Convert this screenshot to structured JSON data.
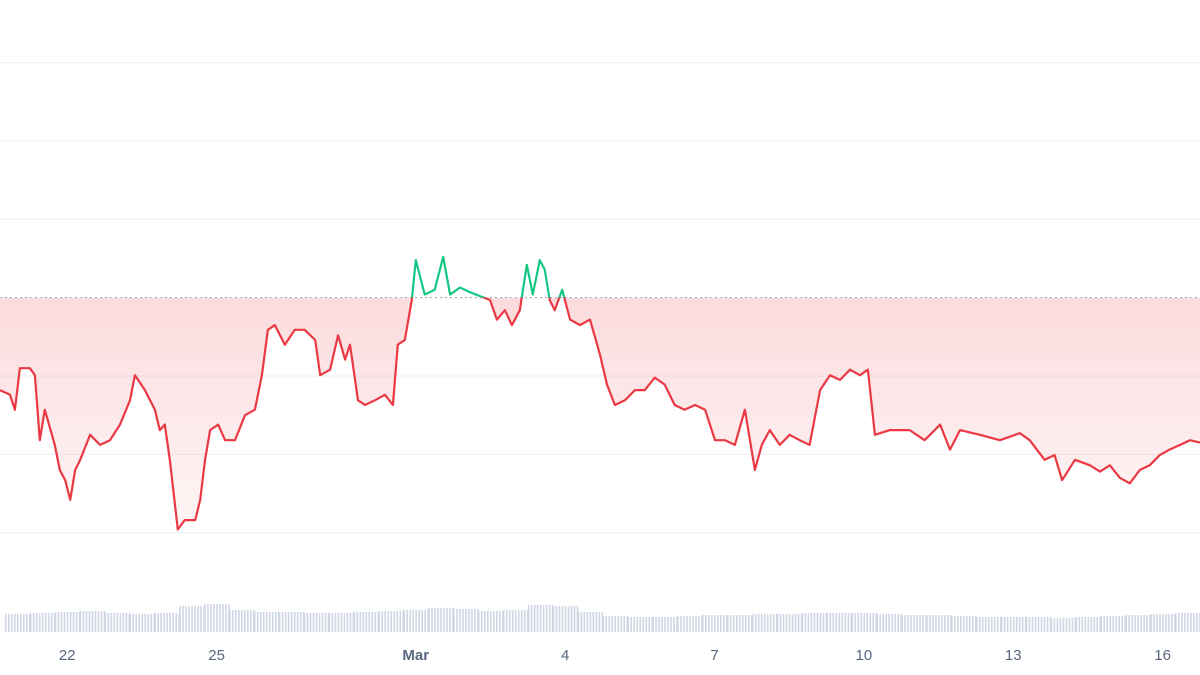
{
  "chart_data": {
    "type": "line",
    "x": [
      20.65,
      20.85,
      20.95,
      21.05,
      21.25,
      21.35,
      21.45,
      21.55,
      21.75,
      21.85,
      21.96,
      22.06,
      22.16,
      22.26,
      22.46,
      22.66,
      22.86,
      23.06,
      23.26,
      23.36,
      23.56,
      23.76,
      23.86,
      23.96,
      24.06,
      24.22,
      24.36,
      24.57,
      24.67,
      24.77,
      24.87,
      25.03,
      25.17,
      25.37,
      25.57,
      25.77,
      25.91,
      26.03,
      26.17,
      26.37,
      26.57,
      26.77,
      26.98,
      27.08,
      27.28,
      27.44,
      27.58,
      27.68,
      27.84,
      27.98,
      28.18,
      28.38,
      28.54,
      28.64,
      28.78,
      28.92,
      29.0,
      29.18,
      29.38,
      29.55,
      29.69,
      29.89,
      30.09,
      30.29,
      30.49,
      30.63,
      30.79,
      30.93,
      31.09,
      31.23,
      31.35,
      31.49,
      31.59,
      31.69,
      31.79,
      31.94,
      32.1,
      32.3,
      32.5,
      32.7,
      32.84,
      33.0,
      33.2,
      33.4,
      33.6,
      33.8,
      34.0,
      34.2,
      34.4,
      34.61,
      34.81,
      35.01,
      35.21,
      35.41,
      35.61,
      35.81,
      35.95,
      36.11,
      36.31,
      36.51,
      36.71,
      36.91,
      37.12,
      37.32,
      37.52,
      37.72,
      37.92,
      38.08,
      38.22,
      38.52,
      38.92,
      39.22,
      39.53,
      39.73,
      39.93,
      40.33,
      40.73,
      41.13,
      41.33,
      41.63,
      41.83,
      41.98,
      42.24,
      42.54,
      42.74,
      42.94,
      43.14,
      43.34,
      43.54,
      43.74,
      43.94,
      44.14,
      44.35,
      44.55,
      44.75
    ],
    "values": [
      2.82,
      2.76,
      2.57,
      3.1,
      3.1,
      3.01,
      2.18,
      2.57,
      2.12,
      1.8,
      1.67,
      1.42,
      1.8,
      1.93,
      2.25,
      2.12,
      2.18,
      2.38,
      2.69,
      3.01,
      2.82,
      2.57,
      2.31,
      2.38,
      1.93,
      1.04,
      1.16,
      1.16,
      1.42,
      1.93,
      2.31,
      2.38,
      2.18,
      2.18,
      2.5,
      2.57,
      3.01,
      3.59,
      3.65,
      3.4,
      3.59,
      3.59,
      3.46,
      3.01,
      3.08,
      3.52,
      3.21,
      3.4,
      2.69,
      2.63,
      2.69,
      2.76,
      2.63,
      3.4,
      3.46,
      3.97,
      4.48,
      4.04,
      4.1,
      4.52,
      4.04,
      4.13,
      4.07,
      4.02,
      3.97,
      3.72,
      3.84,
      3.65,
      3.84,
      4.42,
      4.04,
      4.48,
      4.36,
      3.97,
      3.84,
      4.1,
      3.72,
      3.65,
      3.72,
      3.27,
      2.89,
      2.63,
      2.69,
      2.82,
      2.82,
      2.98,
      2.89,
      2.63,
      2.57,
      2.63,
      2.57,
      2.18,
      2.18,
      2.12,
      2.57,
      1.8,
      2.12,
      2.31,
      2.12,
      2.25,
      2.18,
      2.12,
      2.82,
      3.01,
      2.95,
      3.08,
      3.01,
      3.08,
      2.25,
      2.31,
      2.31,
      2.18,
      2.38,
      2.06,
      2.31,
      2.25,
      2.18,
      2.27,
      2.18,
      1.93,
      1.99,
      1.67,
      1.93,
      1.86,
      1.78,
      1.86,
      1.7,
      1.63,
      1.8,
      1.86,
      1.99,
      2.06,
      2.12,
      2.18,
      2.15
    ],
    "baseline": 4,
    "up_color": "#16c784",
    "down_color": "#ea3943",
    "xlim": [
      20.65,
      44.75
    ],
    "xticks": [
      22,
      25,
      {
        "value": 29,
        "label": "Mar"
      },
      {
        "value": 32,
        "label": "4"
      },
      {
        "value": 35,
        "label": "7"
      },
      {
        "value": 38,
        "label": "10"
      },
      {
        "value": 41,
        "label": "13"
      },
      {
        "value": 44,
        "label": "16"
      }
    ],
    "ylim": [
      0,
      7.8
    ],
    "yticks": [
      1,
      2,
      3,
      4,
      5,
      6,
      7
    ],
    "grid": true,
    "volume": {
      "color": "#cfd6e4",
      "x": [
        21,
        21.5,
        22,
        22.5,
        23,
        23.5,
        24,
        24.5,
        25,
        25.5,
        26,
        26.5,
        27,
        27.5,
        28,
        28.5,
        29,
        29.5,
        30,
        30.5,
        31,
        31.5,
        32,
        32.5,
        33,
        33.5,
        34,
        34.5,
        35,
        35.5,
        36,
        36.5,
        37,
        37.5,
        38,
        38.5,
        39,
        39.5,
        40,
        40.5,
        41,
        41.5,
        42,
        42.5,
        43,
        43.5,
        44,
        44.5
      ],
      "values": [
        18,
        19,
        20,
        21,
        19,
        18,
        19,
        26,
        28,
        22,
        20,
        20,
        19,
        19,
        20,
        21,
        22,
        24,
        23,
        21,
        22,
        27,
        26,
        20,
        16,
        15,
        15,
        16,
        17,
        17,
        18,
        18,
        19,
        19,
        19,
        18,
        17,
        17,
        16,
        15,
        15,
        15,
        14,
        15,
        16,
        17,
        18,
        19
      ],
      "y2lim": [
        0,
        40
      ]
    }
  }
}
